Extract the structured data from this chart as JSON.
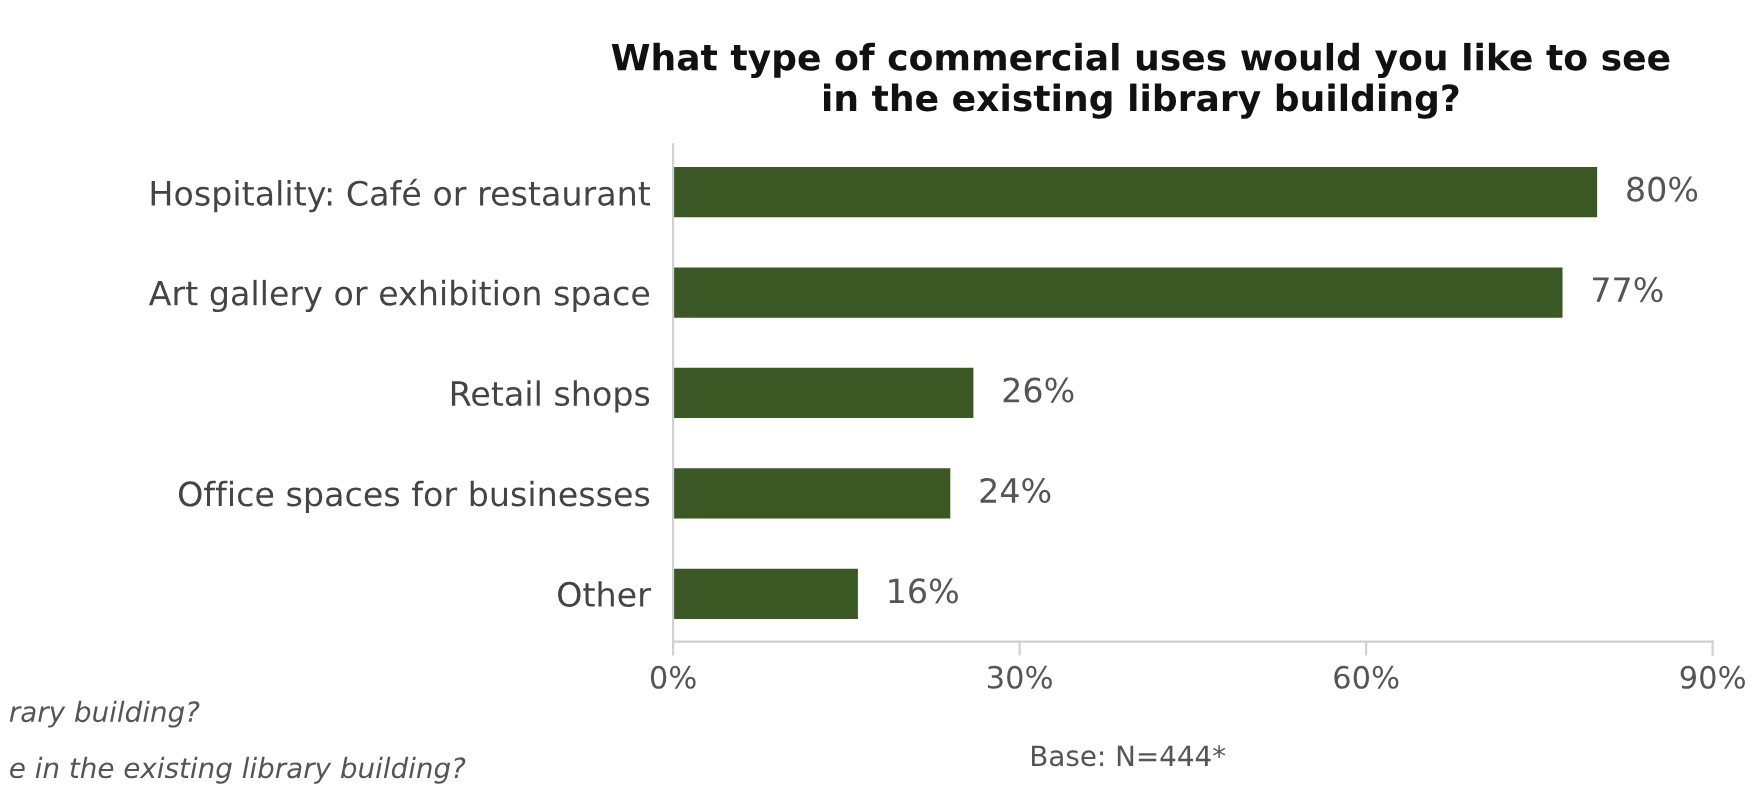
{
  "chart_data": {
    "type": "bar",
    "orientation": "horizontal",
    "title": "What type of commercial uses would you like to see\nin the existing library building?",
    "categories": [
      "Hospitality: Café or restaurant",
      "Art gallery or exhibition space",
      "Retail shops",
      "Office spaces for businesses",
      "Other"
    ],
    "values": [
      80,
      77,
      26,
      24,
      16
    ],
    "value_labels": [
      "80%",
      "77%",
      "26%",
      "24%",
      "16%"
    ],
    "color": "#3b5723",
    "xlim": [
      0,
      90
    ],
    "xticks": [
      {
        "value": 0,
        "label": "0%"
      },
      {
        "value": 30,
        "label": "30%"
      },
      {
        "value": 60,
        "label": "60%"
      },
      {
        "value": 90,
        "label": "90%"
      }
    ],
    "grid": false,
    "annotations": [
      "rary building?",
      "e in the existing library building?",
      "Base: N=444*"
    ]
  }
}
